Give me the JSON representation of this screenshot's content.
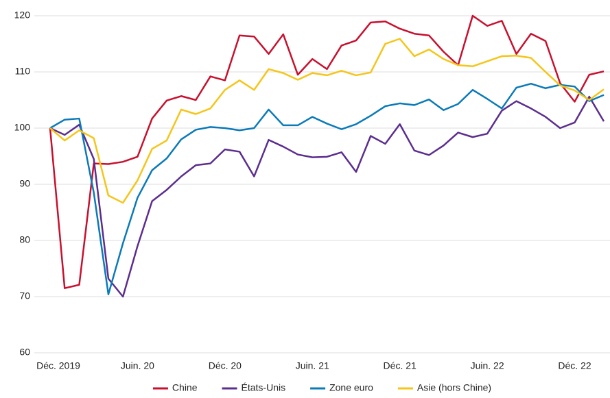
{
  "chart_data": {
    "type": "line",
    "categories": [
      "Déc. 2019",
      null,
      null,
      null,
      null,
      null,
      "Juin. 20",
      null,
      null,
      null,
      null,
      null,
      "Déc. 20",
      null,
      null,
      null,
      null,
      null,
      "Juin. 21",
      null,
      null,
      null,
      null,
      null,
      "Déc. 21",
      null,
      null,
      null,
      null,
      null,
      "Juin. 22",
      null,
      null,
      null,
      null,
      null,
      "Déc. 22",
      null,
      null
    ],
    "series": [
      {
        "name": "Chine",
        "color": "#c8102e",
        "values": [
          100,
          71.5,
          72.1,
          93.7,
          93.6,
          94,
          94.9,
          101.7,
          104.9,
          105.7,
          105,
          109.2,
          108.5,
          116.5,
          116.3,
          113.2,
          116.7,
          109.5,
          112.3,
          110.5,
          114.7,
          115.6,
          118.8,
          119,
          117.7,
          116.8,
          116.5,
          113.6,
          111.2,
          120,
          118.2,
          119.1,
          113.2,
          116.8,
          115.5,
          108,
          104.7,
          109.5,
          110.1
        ]
      },
      {
        "name": "États-Unis",
        "color": "#5b2d8e",
        "values": [
          100,
          98.8,
          100.6,
          94.5,
          73.2,
          70,
          79,
          87,
          89,
          91.4,
          93.4,
          93.7,
          96.2,
          95.8,
          91.4,
          97.9,
          96.7,
          95.3,
          94.8,
          94.9,
          95.7,
          92.2,
          98.6,
          97.2,
          100.7,
          96,
          95.2,
          96.9,
          99.2,
          98.4,
          99,
          103.1,
          104.8,
          103.5,
          102,
          100,
          101,
          105.6,
          101.2
        ]
      },
      {
        "name": "Zone euro",
        "color": "#0a7ab8",
        "values": [
          100,
          101.5,
          101.7,
          88.5,
          70.4,
          79.5,
          87.6,
          92.5,
          94.6,
          98,
          99.7,
          100.2,
          100,
          99.6,
          100,
          103.3,
          100.5,
          100.5,
          102,
          100.8,
          99.8,
          100.7,
          102.2,
          103.9,
          104.4,
          104.1,
          105.1,
          103.2,
          104.3,
          106.8,
          105.2,
          103.5,
          107.2,
          107.9,
          107.1,
          107.7,
          107.4,
          104.8,
          105.9
        ]
      },
      {
        "name": "Asie (hors Chine)",
        "color": "#f5c518",
        "values": [
          100,
          97.8,
          99.6,
          98.2,
          88,
          86.7,
          90.7,
          96.3,
          97.8,
          103.3,
          102.5,
          103.5,
          106.8,
          108.5,
          106.8,
          110.5,
          109.8,
          108.6,
          109.8,
          109.4,
          110.2,
          109.4,
          109.9,
          115,
          115.9,
          112.8,
          114,
          112.3,
          111.2,
          111,
          111.9,
          112.8,
          112.9,
          112.5,
          110,
          107.6,
          106.7,
          105,
          106.9
        ]
      }
    ],
    "ylim": [
      60,
      120
    ],
    "yticks": [
      60,
      70,
      80,
      90,
      100,
      110,
      120
    ],
    "grid": true,
    "legend": "bottom"
  }
}
